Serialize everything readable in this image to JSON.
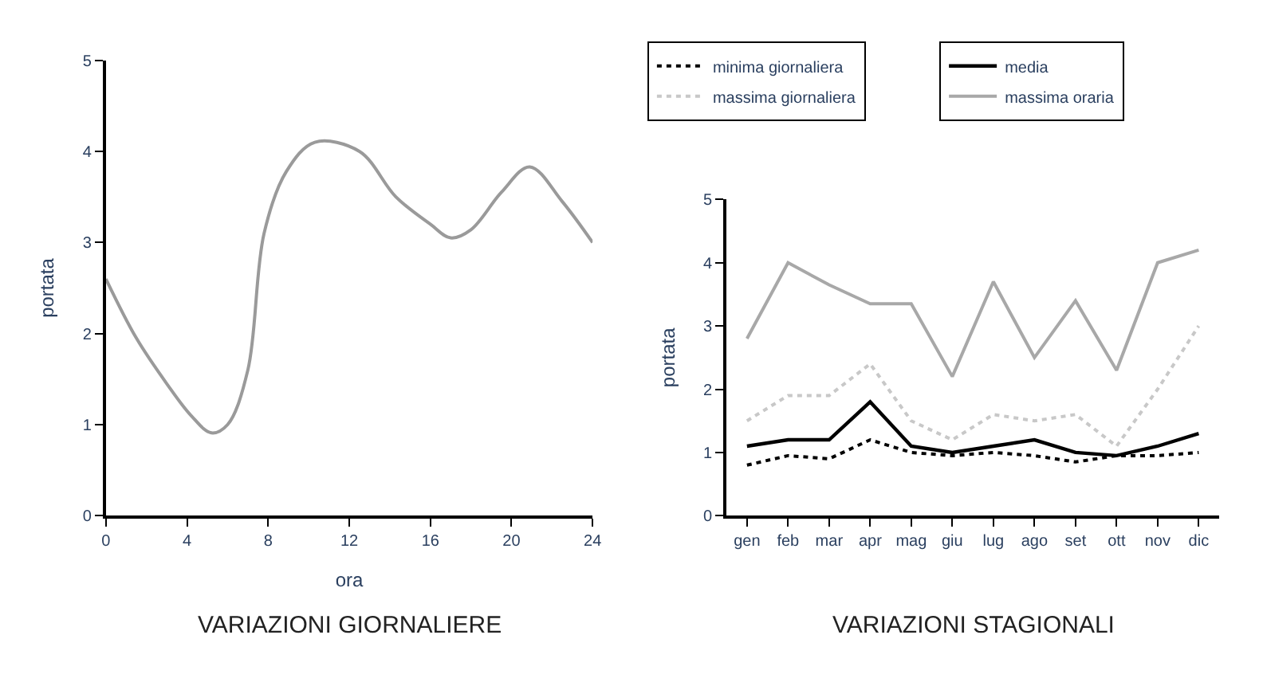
{
  "chart_data": [
    {
      "type": "line",
      "title": "VARIAZIONI GIORNALIERE",
      "xlabel": "ora",
      "ylabel": "portata",
      "x": [
        0,
        1.5,
        3,
        4.2,
        5.2,
        6,
        7,
        7.8,
        8.9,
        10.3,
        12.5,
        14.3,
        16,
        17,
        18,
        19.5,
        20.9,
        22.5,
        24
      ],
      "series": [
        {
          "color": "#9a9a9a",
          "values": [
            2.6,
            1.95,
            1.45,
            1.1,
            0.91,
            1.0,
            1.6,
            3.1,
            3.78,
            4.1,
            4.0,
            3.5,
            3.2,
            3.05,
            3.14,
            3.55,
            3.83,
            3.45,
            3.0
          ]
        }
      ],
      "xlim": [
        0,
        24
      ],
      "xticks": [
        0,
        4,
        8,
        12,
        16,
        20,
        24
      ],
      "ylim": [
        0,
        5
      ],
      "yticks": [
        0,
        1,
        2,
        3,
        4,
        5
      ],
      "legend": false,
      "marker": "none"
    },
    {
      "type": "line",
      "title": "VARIAZIONI STAGIONALI",
      "ylabel": "portata",
      "categories": [
        "gen",
        "feb",
        "mar",
        "apr",
        "mag",
        "giu",
        "lug",
        "ago",
        "set",
        "ott",
        "nov",
        "dic"
      ],
      "series": [
        {
          "name": "minima giornaliera",
          "color": "#000000",
          "line_style": "dotted",
          "values": [
            0.8,
            0.95,
            0.9,
            1.2,
            1.0,
            0.95,
            1.0,
            0.95,
            0.85,
            0.95,
            0.95,
            1.0
          ]
        },
        {
          "name": "media",
          "color": "#000000",
          "line_style": "solid",
          "values": [
            1.1,
            1.2,
            1.2,
            1.8,
            1.1,
            1.0,
            1.1,
            1.2,
            1.0,
            0.95,
            1.1,
            1.3
          ]
        },
        {
          "name": "massima giornaliera",
          "color": "#c8c8c8",
          "line_style": "dotted",
          "values": [
            1.5,
            1.9,
            1.9,
            2.4,
            1.5,
            1.2,
            1.6,
            1.5,
            1.6,
            1.1,
            2.0,
            3.0
          ]
        },
        {
          "name": "massima oraria",
          "color": "#a8a8a8",
          "line_style": "solid",
          "values": [
            2.8,
            4.0,
            3.65,
            3.35,
            3.35,
            2.2,
            3.7,
            2.5,
            3.4,
            2.3,
            4.0,
            4.2
          ]
        }
      ],
      "ylim": [
        0,
        5
      ],
      "yticks": [
        0,
        1,
        2,
        3,
        4,
        5
      ],
      "legend": "top",
      "marker": "none"
    }
  ]
}
